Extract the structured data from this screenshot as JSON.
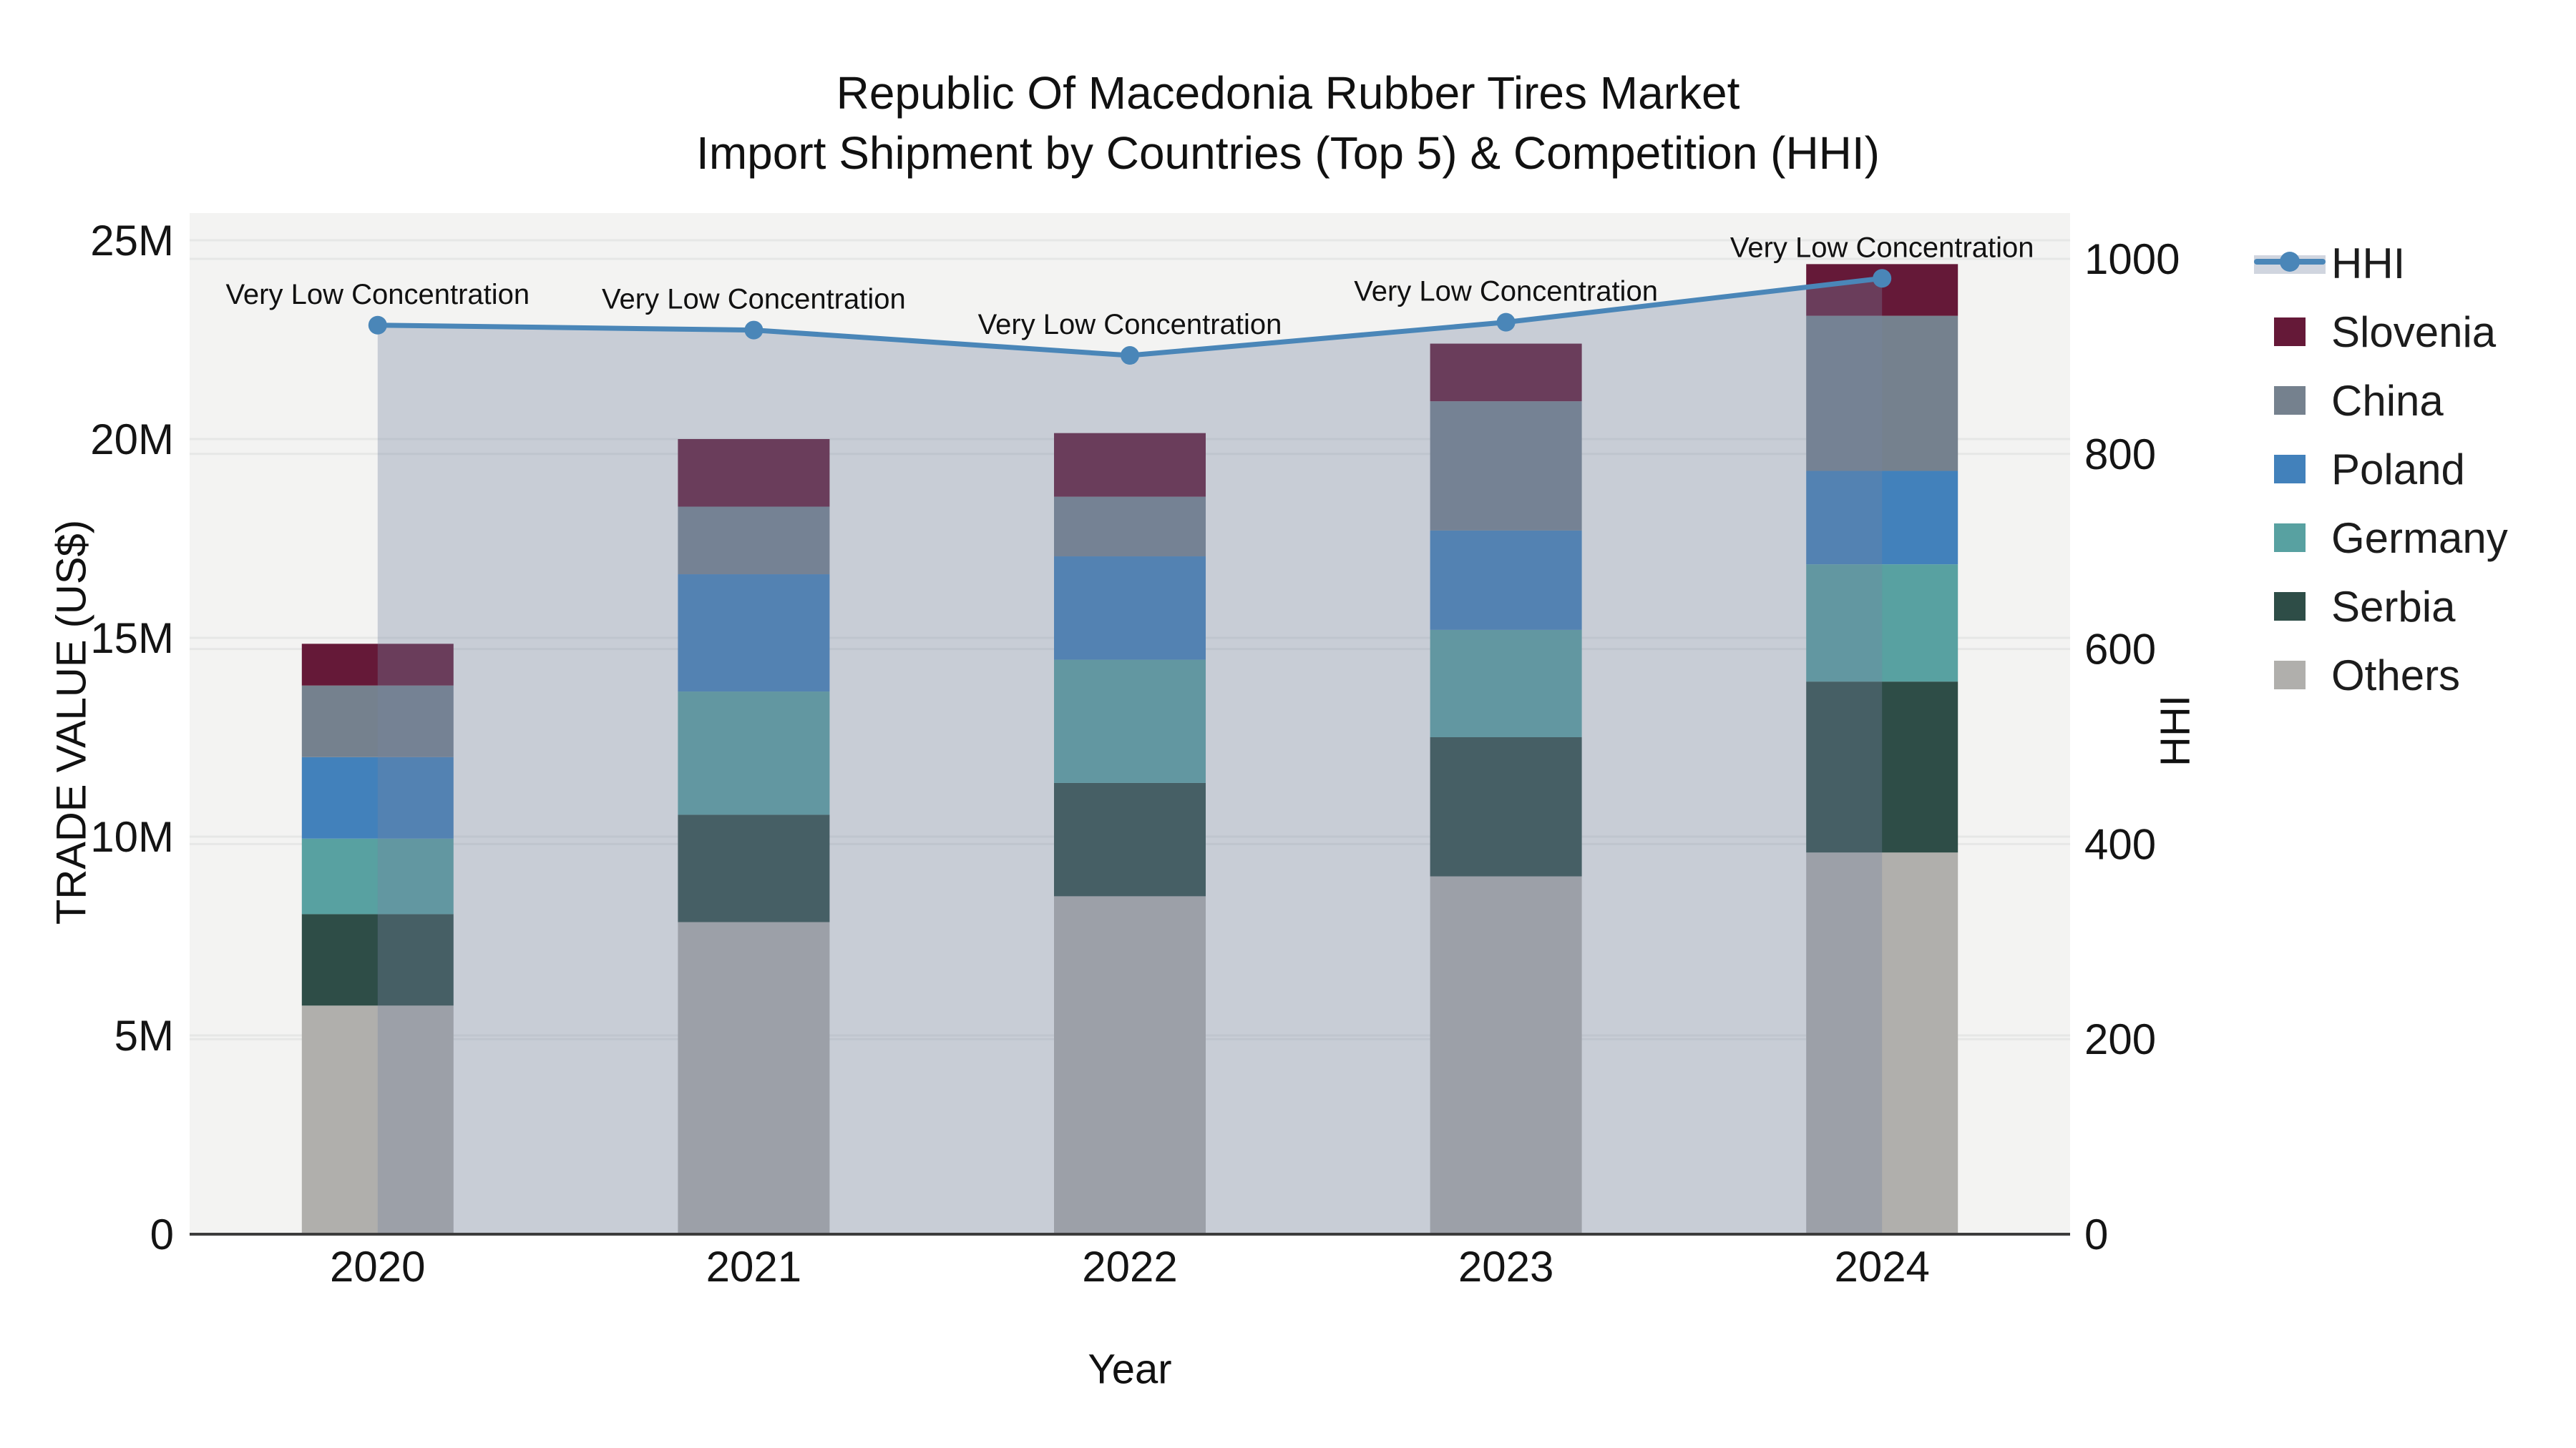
{
  "figure": {
    "title_line1": "Republic Of Macedonia Rubber Tires Market",
    "title_line2": "Import Shipment by Countries (Top 5) & Competition (HHI)"
  },
  "chart_data": {
    "type": "bar",
    "subtype": "stacked-bars-with-line-overlay",
    "title": "Republic Of Macedonia Rubber Tires Market Import Shipment by Countries (Top 5) & Competition (HHI)",
    "xlabel": "Year",
    "ylabel": "TRADE VALUE (US$)",
    "y2label": "HHI",
    "categories": [
      "2020",
      "2021",
      "2022",
      "2023",
      "2024"
    ],
    "unit": "million US$",
    "series": [
      {
        "name": "Others",
        "color": "#b0afac",
        "values": [
          5.75,
          7.85,
          8.5,
          9.0,
          9.6
        ]
      },
      {
        "name": "Serbia",
        "color": "#2e4d47",
        "values": [
          2.3,
          2.7,
          2.85,
          3.5,
          4.3
        ]
      },
      {
        "name": "Germany",
        "color": "#58a1a1",
        "values": [
          1.9,
          3.1,
          3.1,
          2.7,
          2.95
        ]
      },
      {
        "name": "Poland",
        "color": "#4281bb",
        "values": [
          2.05,
          2.95,
          2.6,
          2.5,
          2.35
        ]
      },
      {
        "name": "China",
        "color": "#75818e",
        "values": [
          1.8,
          1.7,
          1.5,
          3.25,
          3.9
        ]
      },
      {
        "name": "Slovenia",
        "color": "#651938",
        "values": [
          1.05,
          1.7,
          1.6,
          1.45,
          1.3
        ]
      }
    ],
    "bar_totals": [
      14.85,
      20.0,
      20.15,
      22.4,
      24.4
    ],
    "overlay_line": {
      "name": "HHI",
      "color": "#4a86b8",
      "fill_color": "rgba(118,133,162,0.34)",
      "values": [
        932,
        927,
        901,
        935,
        980
      ],
      "axis": "right"
    },
    "annotations": [
      "Very Low Concentration",
      "Very Low Concentration",
      "Very Low Concentration",
      "Very Low Concentration",
      "Very Low Concentration"
    ],
    "yticks_labels": [
      "0",
      "5M",
      "10M",
      "15M",
      "20M",
      "25M"
    ],
    "yticks_values": [
      0,
      5,
      10,
      15,
      20,
      25
    ],
    "ylim": [
      0,
      25.7
    ],
    "y2ticks_labels": [
      "0",
      "200",
      "400",
      "600",
      "800",
      "1000"
    ],
    "y2ticks_values": [
      0,
      200,
      400,
      600,
      800,
      1000
    ],
    "y2lim": [
      0,
      1047
    ],
    "grid": true,
    "plot_bg_color": "#f3f3f2",
    "axis_line_color": "#3c3c3c",
    "grid_color": "#e6e7e6",
    "legend_position": "right",
    "legend_order": [
      "HHI",
      "Slovenia",
      "China",
      "Poland",
      "Germany",
      "Serbia",
      "Others"
    ]
  }
}
